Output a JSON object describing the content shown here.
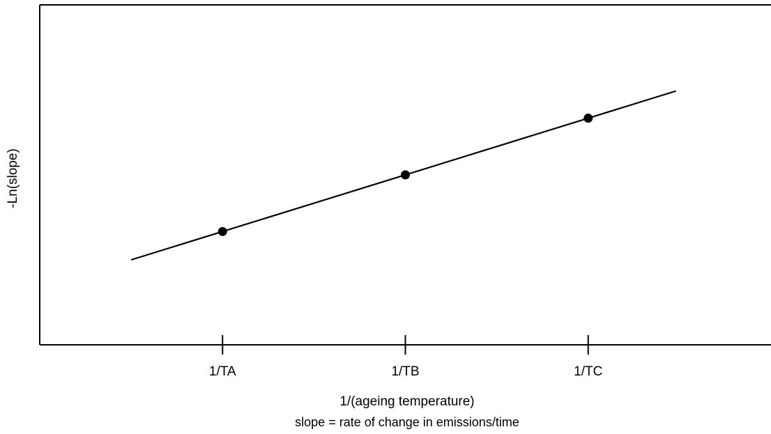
{
  "chart_data": {
    "type": "scatter",
    "title": "",
    "xlabel": "1/(ageing temperature)",
    "ylabel": "-Ln(slope)",
    "caption": "slope = rate of change in emissions/time",
    "x_tick_labels": [
      "1/TA",
      "1/TB",
      "1/TC"
    ],
    "points": [
      {
        "x": 1,
        "y": 1.0
      },
      {
        "x": 2,
        "y": 2.0
      },
      {
        "x": 3,
        "y": 3.0
      }
    ],
    "fit_line": {
      "x_start": 0.5,
      "x_end": 3.48
    },
    "xlim": [
      -0.0,
      4.0
    ],
    "ylim": [
      -1.0,
      5.0
    ],
    "grid": false,
    "legend": "none",
    "colors": {
      "marks": "#000000",
      "axes": "#000000"
    }
  }
}
